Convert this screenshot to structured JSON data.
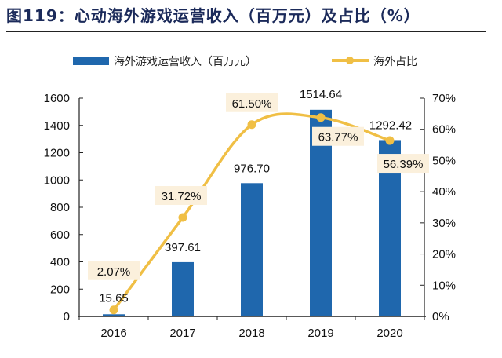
{
  "title": "图119：心动海外游戏运营收入（百万元）及占比（%）",
  "chart_data": {
    "type": "bar+line",
    "categories": [
      "2016",
      "2017",
      "2018",
      "2019",
      "2020"
    ],
    "series": [
      {
        "name": "海外游戏运营收入（百万元）",
        "type": "bar",
        "axis": "left",
        "values": [
          15.65,
          397.61,
          976.7,
          1514.64,
          1292.42
        ],
        "labels": [
          "15.65",
          "397.61",
          "976.70",
          "1514.64",
          "1292.42"
        ],
        "color": "#1f67ad"
      },
      {
        "name": "海外占比",
        "type": "line",
        "axis": "right",
        "values": [
          2.07,
          31.72,
          61.5,
          63.77,
          56.39
        ],
        "labels": [
          "2.07%",
          "31.72%",
          "61.50%",
          "63.77%",
          "56.39%"
        ],
        "color": "#f0bf45"
      }
    ],
    "left_axis": {
      "range": [
        0,
        1600
      ],
      "ticks": [
        0,
        200,
        400,
        600,
        800,
        1000,
        1200,
        1400,
        1600
      ],
      "tick_labels": [
        "0",
        "200",
        "400",
        "600",
        "800",
        "1000",
        "1200",
        "1400",
        "1600"
      ]
    },
    "right_axis": {
      "range": [
        0,
        70
      ],
      "ticks": [
        0,
        10,
        20,
        30,
        40,
        50,
        60,
        70
      ],
      "tick_labels": [
        "0%",
        "10%",
        "20%",
        "30%",
        "40%",
        "50%",
        "60%",
        "70%"
      ]
    },
    "grid": false,
    "legend_placement": "top",
    "label_box_color": "#fbf0dc"
  }
}
